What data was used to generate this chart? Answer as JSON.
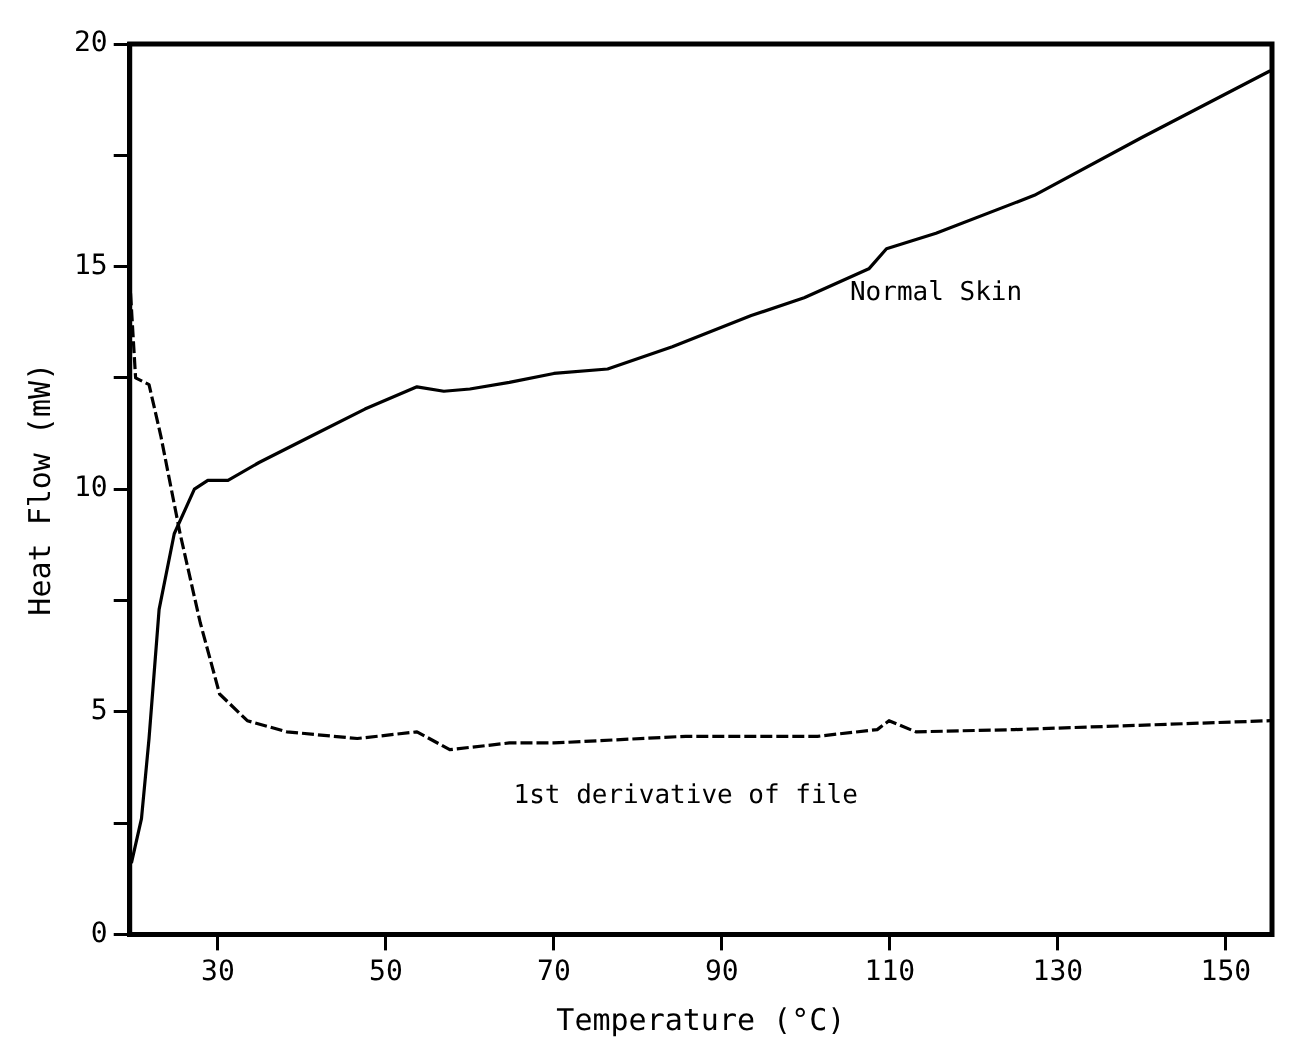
{
  "chart_data": {
    "type": "line",
    "xlabel": "Temperature (°C)",
    "ylabel": "Heat Flow (mW)",
    "xlim": [
      19.5,
      155.5
    ],
    "ylim": [
      0,
      20
    ],
    "xticks": [
      30,
      50,
      70,
      90,
      110,
      130,
      150
    ],
    "yticks": [
      0,
      {
        "value": 2.5,
        "label": null
      },
      5,
      {
        "value": 7.5,
        "label": null
      },
      10,
      {
        "value": 12.5,
        "label": null
      },
      15,
      {
        "value": 17.5,
        "label": null
      },
      20
    ],
    "grid": false,
    "legend": false,
    "marker": "none",
    "series": [
      {
        "name": "Normal Skin",
        "color": "#000000",
        "line_style": "solid",
        "x": [
          19.7,
          20.9,
          21.8,
          23,
          24.8,
          27.2,
          28.8,
          31.2,
          34.9,
          41.2,
          47.5,
          53.7,
          56.9,
          60,
          64.7,
          70,
          76.4,
          84.1,
          93.5,
          99.8,
          107.5,
          109.6,
          115.5,
          127.2,
          140,
          155.3
        ],
        "values": [
          1.6,
          2.6,
          4.4,
          7.3,
          9.0,
          10.0,
          10.2,
          10.2,
          10.6,
          11.2,
          11.8,
          12.3,
          12.2,
          12.25,
          12.4,
          12.6,
          12.7,
          13.2,
          13.9,
          14.3,
          14.95,
          15.4,
          15.75,
          16.6,
          17.9,
          19.4
        ]
      },
      {
        "name": "1st derivative of file",
        "color": "#000000",
        "line_style": "dashed",
        "x": [
          19.6,
          20.2,
          21.8,
          23.2,
          25.5,
          27.9,
          30.2,
          33.5,
          38.2,
          46.6,
          53.7,
          57.6,
          64.7,
          70,
          85.7,
          101.4,
          108.5,
          109.9,
          113.1,
          124.8,
          155.3
        ],
        "values": [
          14.4,
          12.5,
          12.35,
          11.2,
          9.0,
          7.0,
          5.4,
          4.8,
          4.55,
          4.4,
          4.55,
          4.15,
          4.3,
          4.3,
          4.45,
          4.45,
          4.6,
          4.8,
          4.55,
          4.6,
          4.8
        ]
      }
    ]
  }
}
